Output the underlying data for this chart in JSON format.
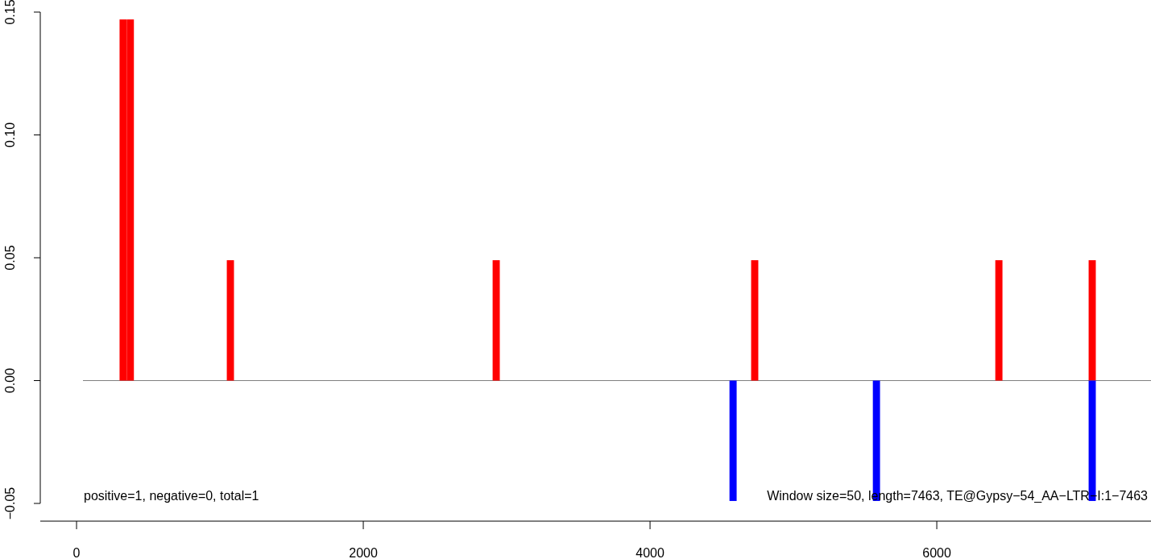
{
  "chart_data": {
    "type": "bar",
    "xlim": [
      -253,
      7494
    ],
    "xticks": [
      0,
      2000,
      4000,
      6000
    ],
    "ylim": [
      -0.05,
      0.15
    ],
    "yticks": [
      {
        "value": -0.05,
        "label": "−0.05"
      },
      {
        "value": 0,
        "label": "0.00"
      },
      {
        "value": 0.05,
        "label": "0.05"
      },
      {
        "value": 0.1,
        "label": "0.10"
      },
      {
        "value": 0.15,
        "label": "0.15"
      }
    ],
    "series": [
      {
        "color": "#ff0000",
        "x": [
          325,
          375,
          1073,
          2927,
          4730,
          6433,
          7084
        ],
        "values": [
          0.147,
          0.147,
          0.049,
          0.049,
          0.049,
          0.049,
          0.049
        ]
      },
      {
        "color": "#0000ff",
        "x": [
          4579,
          5579,
          7084
        ],
        "values": [
          -0.049,
          -0.049,
          -0.049
        ]
      }
    ],
    "ref_lines": [
      {
        "axis": "y",
        "value": 0,
        "color": "#808080"
      }
    ],
    "annotations": [
      "positive=1, negative=0, total=1",
      "Window size=50, length=7463, TE@Gypsy−54_AA−LTR−I:1−7463"
    ]
  }
}
